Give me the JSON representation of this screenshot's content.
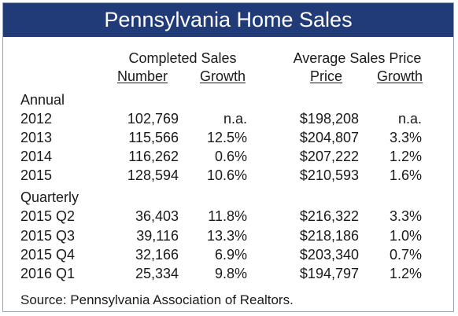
{
  "title": "Pennsylvania Home Sales",
  "headers": {
    "group1": "Completed Sales",
    "group2": "Average Sales Price",
    "number": "Number",
    "growth1": "Growth",
    "price": "Price",
    "growth2": "Growth"
  },
  "sections": {
    "annual": "Annual",
    "quarterly": "Quarterly"
  },
  "rows": [
    {
      "label": "2012",
      "number": "102,769",
      "growth": "n.a.",
      "price": "$198,208",
      "price_growth": "n.a."
    },
    {
      "label": "2013",
      "number": "115,566",
      "growth": "12.5%",
      "price": "$204,807",
      "price_growth": "3.3%"
    },
    {
      "label": "2014",
      "number": "116,262",
      "growth": "0.6%",
      "price": "$207,222",
      "price_growth": "1.2%"
    },
    {
      "label": "2015",
      "number": "128,594",
      "growth": "10.6%",
      "price": "$210,593",
      "price_growth": "1.6%"
    },
    {
      "label": "2015 Q2",
      "number": "36,403",
      "growth": "11.8%",
      "price": "$216,322",
      "price_growth": "3.3%"
    },
    {
      "label": "2015 Q3",
      "number": "39,116",
      "growth": "13.3%",
      "price": "$218,186",
      "price_growth": "1.0%"
    },
    {
      "label": "2015 Q4",
      "number": "32,166",
      "growth": "6.9%",
      "price": "$203,340",
      "price_growth": "0.7%"
    },
    {
      "label": "2016 Q1",
      "number": "25,334",
      "growth": "9.8%",
      "price": "$194,797",
      "price_growth": "1.2%"
    }
  ],
  "source": "Source: Pennsylvania Association of Realtors."
}
